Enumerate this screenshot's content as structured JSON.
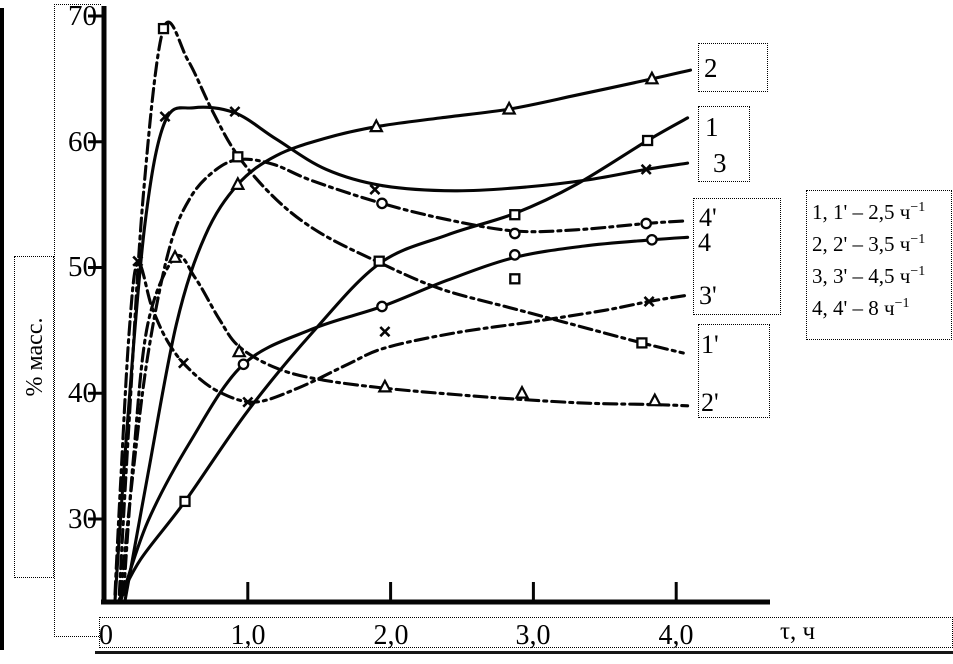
{
  "figure": {
    "y_axis_title": "% масс.",
    "x_axis_title": "τ, ч"
  },
  "chart_data": {
    "type": "line",
    "title": "",
    "xlabel": "τ, ч",
    "ylabel": "% масс.",
    "xlim": [
      0,
      4.65
    ],
    "ylim": [
      22.5,
      71.5
    ],
    "grid": false,
    "legend_position": "right",
    "ink_color": "#050505",
    "x_ticks": [
      {
        "value": 0,
        "label": "0"
      },
      {
        "value": 1.0,
        "label": "1,0"
      },
      {
        "value": 2.0,
        "label": "2,0"
      },
      {
        "value": 3.0,
        "label": "3,0"
      },
      {
        "value": 4.0,
        "label": "4,0"
      }
    ],
    "y_ticks": [
      {
        "value": 70,
        "label": "70"
      },
      {
        "value": 60,
        "label": "60"
      },
      {
        "value": 50,
        "label": "50"
      },
      {
        "value": 40,
        "label": "40"
      },
      {
        "value": 30,
        "label": "30"
      }
    ],
    "series": [
      {
        "label": "1",
        "line": "solid",
        "marker": "square",
        "points": [
          [
            0.1,
            23.6
          ],
          [
            0.25,
            26.8
          ],
          [
            0.56,
            31.4
          ],
          [
            1.0,
            38.6
          ],
          [
            1.45,
            44.8
          ],
          [
            1.92,
            50.3
          ],
          [
            2.4,
            52.6
          ],
          [
            2.87,
            54.3
          ],
          [
            3.3,
            56.6
          ],
          [
            3.8,
            60.1
          ],
          [
            4.08,
            61.9
          ]
        ],
        "marker_points": [
          [
            0.56,
            31.4
          ],
          [
            2.87,
            54.2
          ],
          [
            3.8,
            60.1
          ]
        ]
      },
      {
        "label": "2",
        "line": "solid",
        "marker": "triangle",
        "points": [
          [
            0.14,
            23.5
          ],
          [
            0.3,
            33.5
          ],
          [
            0.5,
            45.5
          ],
          [
            0.7,
            52.5
          ],
          [
            0.93,
            56.6
          ],
          [
            1.2,
            58.9
          ],
          [
            1.55,
            60.3
          ],
          [
            1.9,
            61.2
          ],
          [
            2.35,
            61.9
          ],
          [
            2.83,
            62.6
          ],
          [
            3.3,
            63.7
          ],
          [
            3.83,
            65.0
          ],
          [
            4.1,
            65.7
          ]
        ],
        "marker_points": [
          [
            0.93,
            56.6
          ],
          [
            1.9,
            61.2
          ],
          [
            2.83,
            62.6
          ],
          [
            3.83,
            65.0
          ]
        ]
      },
      {
        "label": "3",
        "line": "solid",
        "marker": "x",
        "points": [
          [
            0.07,
            23.5
          ],
          [
            0.16,
            38
          ],
          [
            0.28,
            53.5
          ],
          [
            0.42,
            61.6
          ],
          [
            0.62,
            62.7
          ],
          [
            0.91,
            62.3
          ],
          [
            1.2,
            60.2
          ],
          [
            1.55,
            57.8
          ],
          [
            1.95,
            56.5
          ],
          [
            2.45,
            56.1
          ],
          [
            2.95,
            56.4
          ],
          [
            3.4,
            57.0
          ],
          [
            3.79,
            57.8
          ],
          [
            4.08,
            58.3
          ]
        ],
        "marker_points": [
          [
            0.42,
            62.0
          ],
          [
            0.91,
            62.4
          ],
          [
            1.89,
            56.2
          ],
          [
            3.79,
            57.8
          ]
        ]
      },
      {
        "label": "4",
        "line": "solid",
        "marker": "circle",
        "points": [
          [
            0.11,
            23.5
          ],
          [
            0.3,
            29.8
          ],
          [
            0.6,
            36.2
          ],
          [
            0.97,
            42.3
          ],
          [
            1.45,
            45.1
          ],
          [
            1.94,
            46.9
          ],
          [
            2.4,
            49.0
          ],
          [
            2.87,
            50.8
          ],
          [
            3.35,
            51.7
          ],
          [
            3.83,
            52.2
          ],
          [
            4.08,
            52.4
          ]
        ],
        "marker_points": [
          [
            0.97,
            42.3
          ],
          [
            1.94,
            46.9
          ],
          [
            2.87,
            51.0
          ],
          [
            3.83,
            52.2
          ]
        ]
      },
      {
        "label": "1'",
        "line": "dashdot",
        "marker": "square",
        "points": [
          [
            0.1,
            24
          ],
          [
            0.17,
            38
          ],
          [
            0.27,
            56
          ],
          [
            0.41,
            69.0
          ],
          [
            0.58,
            66.5
          ],
          [
            0.75,
            62.5
          ],
          [
            0.93,
            58.9
          ],
          [
            1.2,
            55.4
          ],
          [
            1.5,
            52.8
          ],
          [
            1.92,
            50.4
          ],
          [
            2.35,
            48.3
          ],
          [
            2.87,
            46.7
          ],
          [
            3.2,
            45.7
          ],
          [
            3.76,
            44.0
          ],
          [
            4.05,
            43.2
          ]
        ],
        "marker_points": [
          [
            0.41,
            69.0
          ],
          [
            0.93,
            58.8
          ],
          [
            1.92,
            50.5
          ],
          [
            2.87,
            49.1
          ],
          [
            3.76,
            44.0
          ]
        ]
      },
      {
        "label": "2'",
        "line": "dashdot",
        "marker": "triangle",
        "points": [
          [
            0.13,
            24
          ],
          [
            0.2,
            35
          ],
          [
            0.3,
            45.5
          ],
          [
            0.49,
            50.8
          ],
          [
            0.63,
            49.2
          ],
          [
            0.8,
            45.9
          ],
          [
            0.94,
            43.7
          ],
          [
            1.2,
            42.0
          ],
          [
            1.5,
            41.1
          ],
          [
            1.96,
            40.4
          ],
          [
            2.45,
            39.9
          ],
          [
            2.92,
            39.5
          ],
          [
            3.4,
            39.2
          ],
          [
            3.85,
            39.1
          ],
          [
            4.08,
            39.0
          ]
        ],
        "marker_points": [
          [
            0.49,
            50.8
          ],
          [
            0.94,
            43.3
          ],
          [
            1.96,
            40.5
          ],
          [
            2.92,
            40.0
          ],
          [
            3.85,
            39.4
          ]
        ]
      },
      {
        "label": "3'",
        "line": "dashdot",
        "marker": "x",
        "points": [
          [
            0.07,
            24
          ],
          [
            0.11,
            33
          ],
          [
            0.17,
            45
          ],
          [
            0.23,
            50.4
          ],
          [
            0.33,
            46.8
          ],
          [
            0.45,
            43.9
          ],
          [
            0.6,
            41.8
          ],
          [
            0.8,
            40.1
          ],
          [
            1.05,
            39.3
          ],
          [
            1.35,
            40.4
          ],
          [
            1.7,
            42.3
          ],
          [
            1.96,
            43.6
          ],
          [
            2.45,
            44.8
          ],
          [
            3.0,
            45.7
          ],
          [
            3.5,
            46.6
          ],
          [
            3.81,
            47.3
          ],
          [
            4.08,
            47.8
          ]
        ],
        "marker_points": [
          [
            0.23,
            50.5
          ],
          [
            0.55,
            42.4
          ],
          [
            1.0,
            39.3
          ],
          [
            1.96,
            44.9
          ],
          [
            3.81,
            47.3
          ]
        ]
      },
      {
        "label": "4'",
        "line": "dashdot",
        "marker": "circle",
        "points": [
          [
            0.11,
            24
          ],
          [
            0.19,
            33
          ],
          [
            0.3,
            43
          ],
          [
            0.45,
            51.5
          ],
          [
            0.6,
            55.6
          ],
          [
            0.78,
            57.8
          ],
          [
            0.95,
            58.6
          ],
          [
            1.18,
            58.2
          ],
          [
            1.45,
            56.9
          ],
          [
            1.94,
            55.1
          ],
          [
            2.4,
            53.8
          ],
          [
            2.87,
            52.9
          ],
          [
            3.3,
            53.0
          ],
          [
            3.79,
            53.5
          ],
          [
            4.05,
            53.7
          ]
        ],
        "marker_points": [
          [
            1.94,
            55.1
          ],
          [
            2.87,
            52.7
          ],
          [
            3.79,
            53.5
          ]
        ]
      }
    ],
    "legend": [
      {
        "text": "1, 1' – 2,5 ч",
        "sup": "−1"
      },
      {
        "text": "2, 2' – 3,5 ч",
        "sup": "−1"
      },
      {
        "text": "3, 3' – 4,5 ч",
        "sup": "−1"
      },
      {
        "text": "4, 4' – 8 ч",
        "sup": "−1"
      }
    ]
  }
}
